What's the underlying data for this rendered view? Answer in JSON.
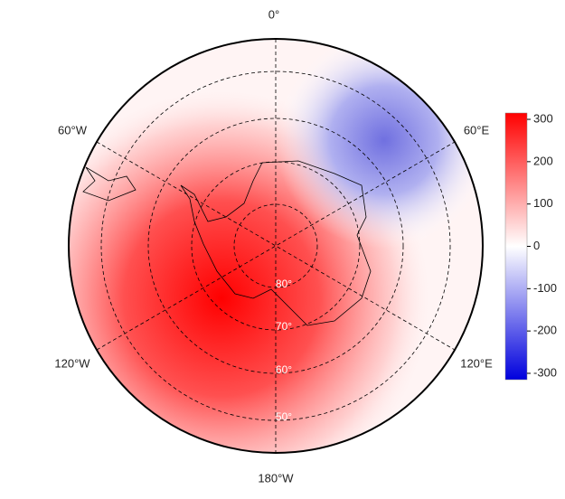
{
  "longitude_labels": {
    "top": "0°",
    "upper_right": "60°E",
    "lower_right": "120°E",
    "bottom": "180°W",
    "lower_left": "120°W",
    "upper_left": "60°W"
  },
  "latitude_labels": [
    "80°",
    "70°",
    "60°",
    "50°"
  ],
  "colorbar": {
    "lim": [
      -315,
      315
    ],
    "ticks": [
      300,
      200,
      100,
      0,
      -100,
      -200,
      -300
    ],
    "colors": [
      "#0000dd",
      "#ffffff",
      "#ff0000"
    ]
  }
}
